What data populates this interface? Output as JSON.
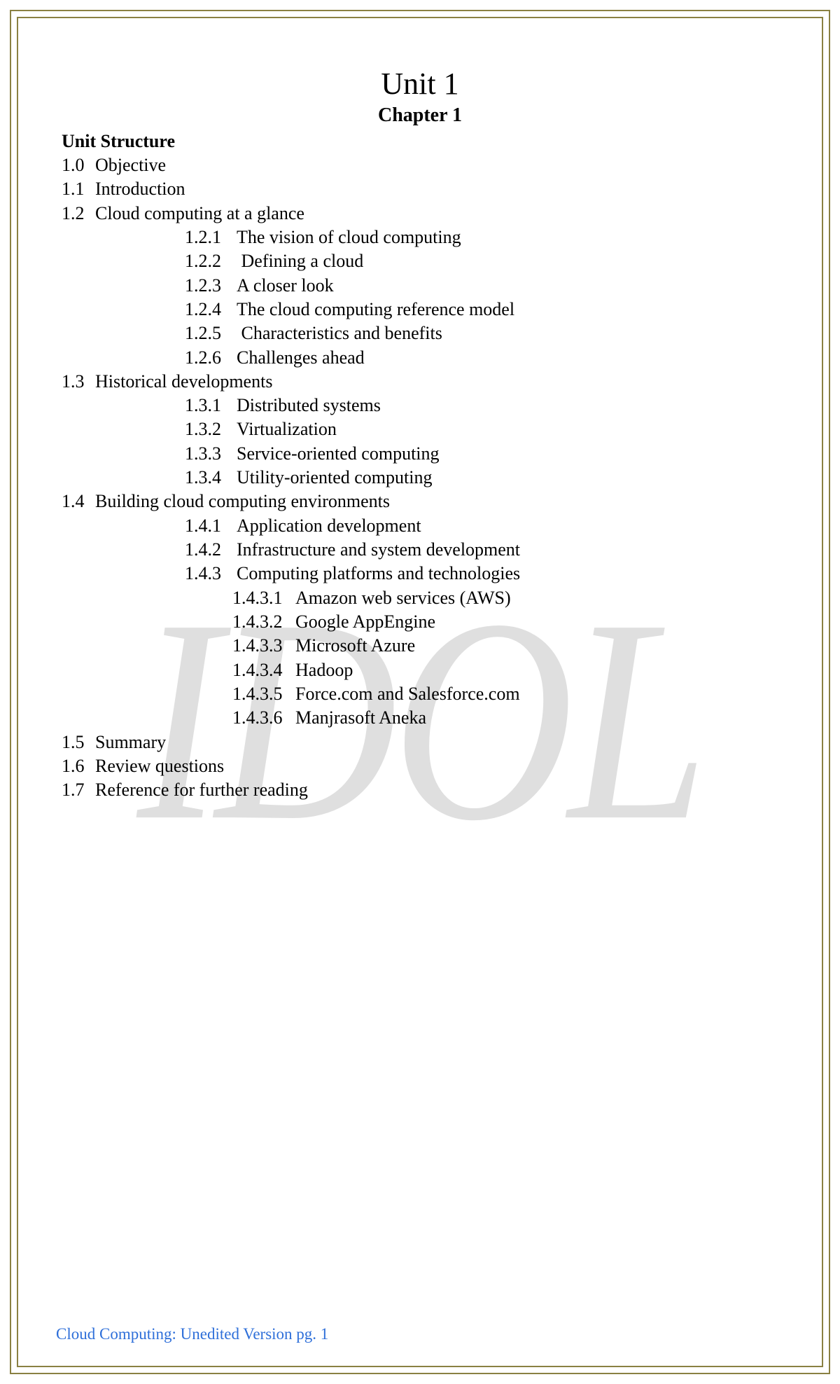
{
  "watermark": "IDOL",
  "unit_title": "Unit 1",
  "chapter_title": "Chapter 1",
  "structure_heading": "Unit Structure",
  "toc": [
    {
      "num": "1.0",
      "text": "Objective",
      "level": 1
    },
    {
      "num": "1.1",
      "text": "Introduction",
      "level": 1
    },
    {
      "num": "1.2",
      "text": "Cloud computing at a glance",
      "level": 1
    },
    {
      "num": "1.2.1",
      "text": "The vision of cloud computing",
      "level": 2
    },
    {
      "num": "1.2.2",
      "text": " Defining a cloud",
      "level": 2
    },
    {
      "num": "1.2.3",
      "text": "A closer look",
      "level": 2
    },
    {
      "num": "1.2.4",
      "text": "The cloud computing reference model",
      "level": 2
    },
    {
      "num": "1.2.5",
      "text": " Characteristics and benefits",
      "level": 2
    },
    {
      "num": "1.2.6",
      "text": "Challenges ahead",
      "level": 2
    },
    {
      "num": "1.3",
      "text": "Historical developments",
      "level": 1
    },
    {
      "num": "1.3.1",
      "text": "Distributed systems",
      "level": 2
    },
    {
      "num": "1.3.2",
      "text": "Virtualization",
      "level": 2
    },
    {
      "num": "1.3.3",
      "text": "Service-oriented computing",
      "level": 2
    },
    {
      "num": "1.3.4",
      "text": "Utility-oriented computing",
      "level": 2
    },
    {
      "num": "1.4",
      "text": "Building cloud computing environments",
      "level": 1
    },
    {
      "num": "1.4.1",
      "text": "Application development",
      "level": 2
    },
    {
      "num": "1.4.2",
      "text": "Infrastructure and system development",
      "level": 2
    },
    {
      "num": "1.4.3",
      "text": "Computing platforms and technologies",
      "level": 2
    },
    {
      "num": "1.4.3.1",
      "text": "Amazon web services (AWS)",
      "level": 3
    },
    {
      "num": "1.4.3.2",
      "text": "Google AppEngine",
      "level": 3
    },
    {
      "num": "1.4.3.3",
      "text": "Microsoft Azure",
      "level": 3
    },
    {
      "num": "1.4.3.4",
      "text": "Hadoop",
      "level": 3
    },
    {
      "num": "1.4.3.5",
      "text": "Force.com and Salesforce.com",
      "level": 3
    },
    {
      "num": "1.4.3.6",
      "text": "Manjrasoft Aneka",
      "level": 3
    },
    {
      "num": "1.5",
      "text": "Summary",
      "level": 1
    },
    {
      "num": "1.6",
      "text": "Review questions",
      "level": 1
    },
    {
      "num": "1.7",
      "text": "Reference for further reading",
      "level": 1
    }
  ],
  "footer_prefix": "Cloud Computing: Unedited Version  pg.",
  "page_number": "1",
  "colors": {
    "border": "#8a8042",
    "footer": "#2e6fd9",
    "watermark": "#d9d9d9"
  }
}
